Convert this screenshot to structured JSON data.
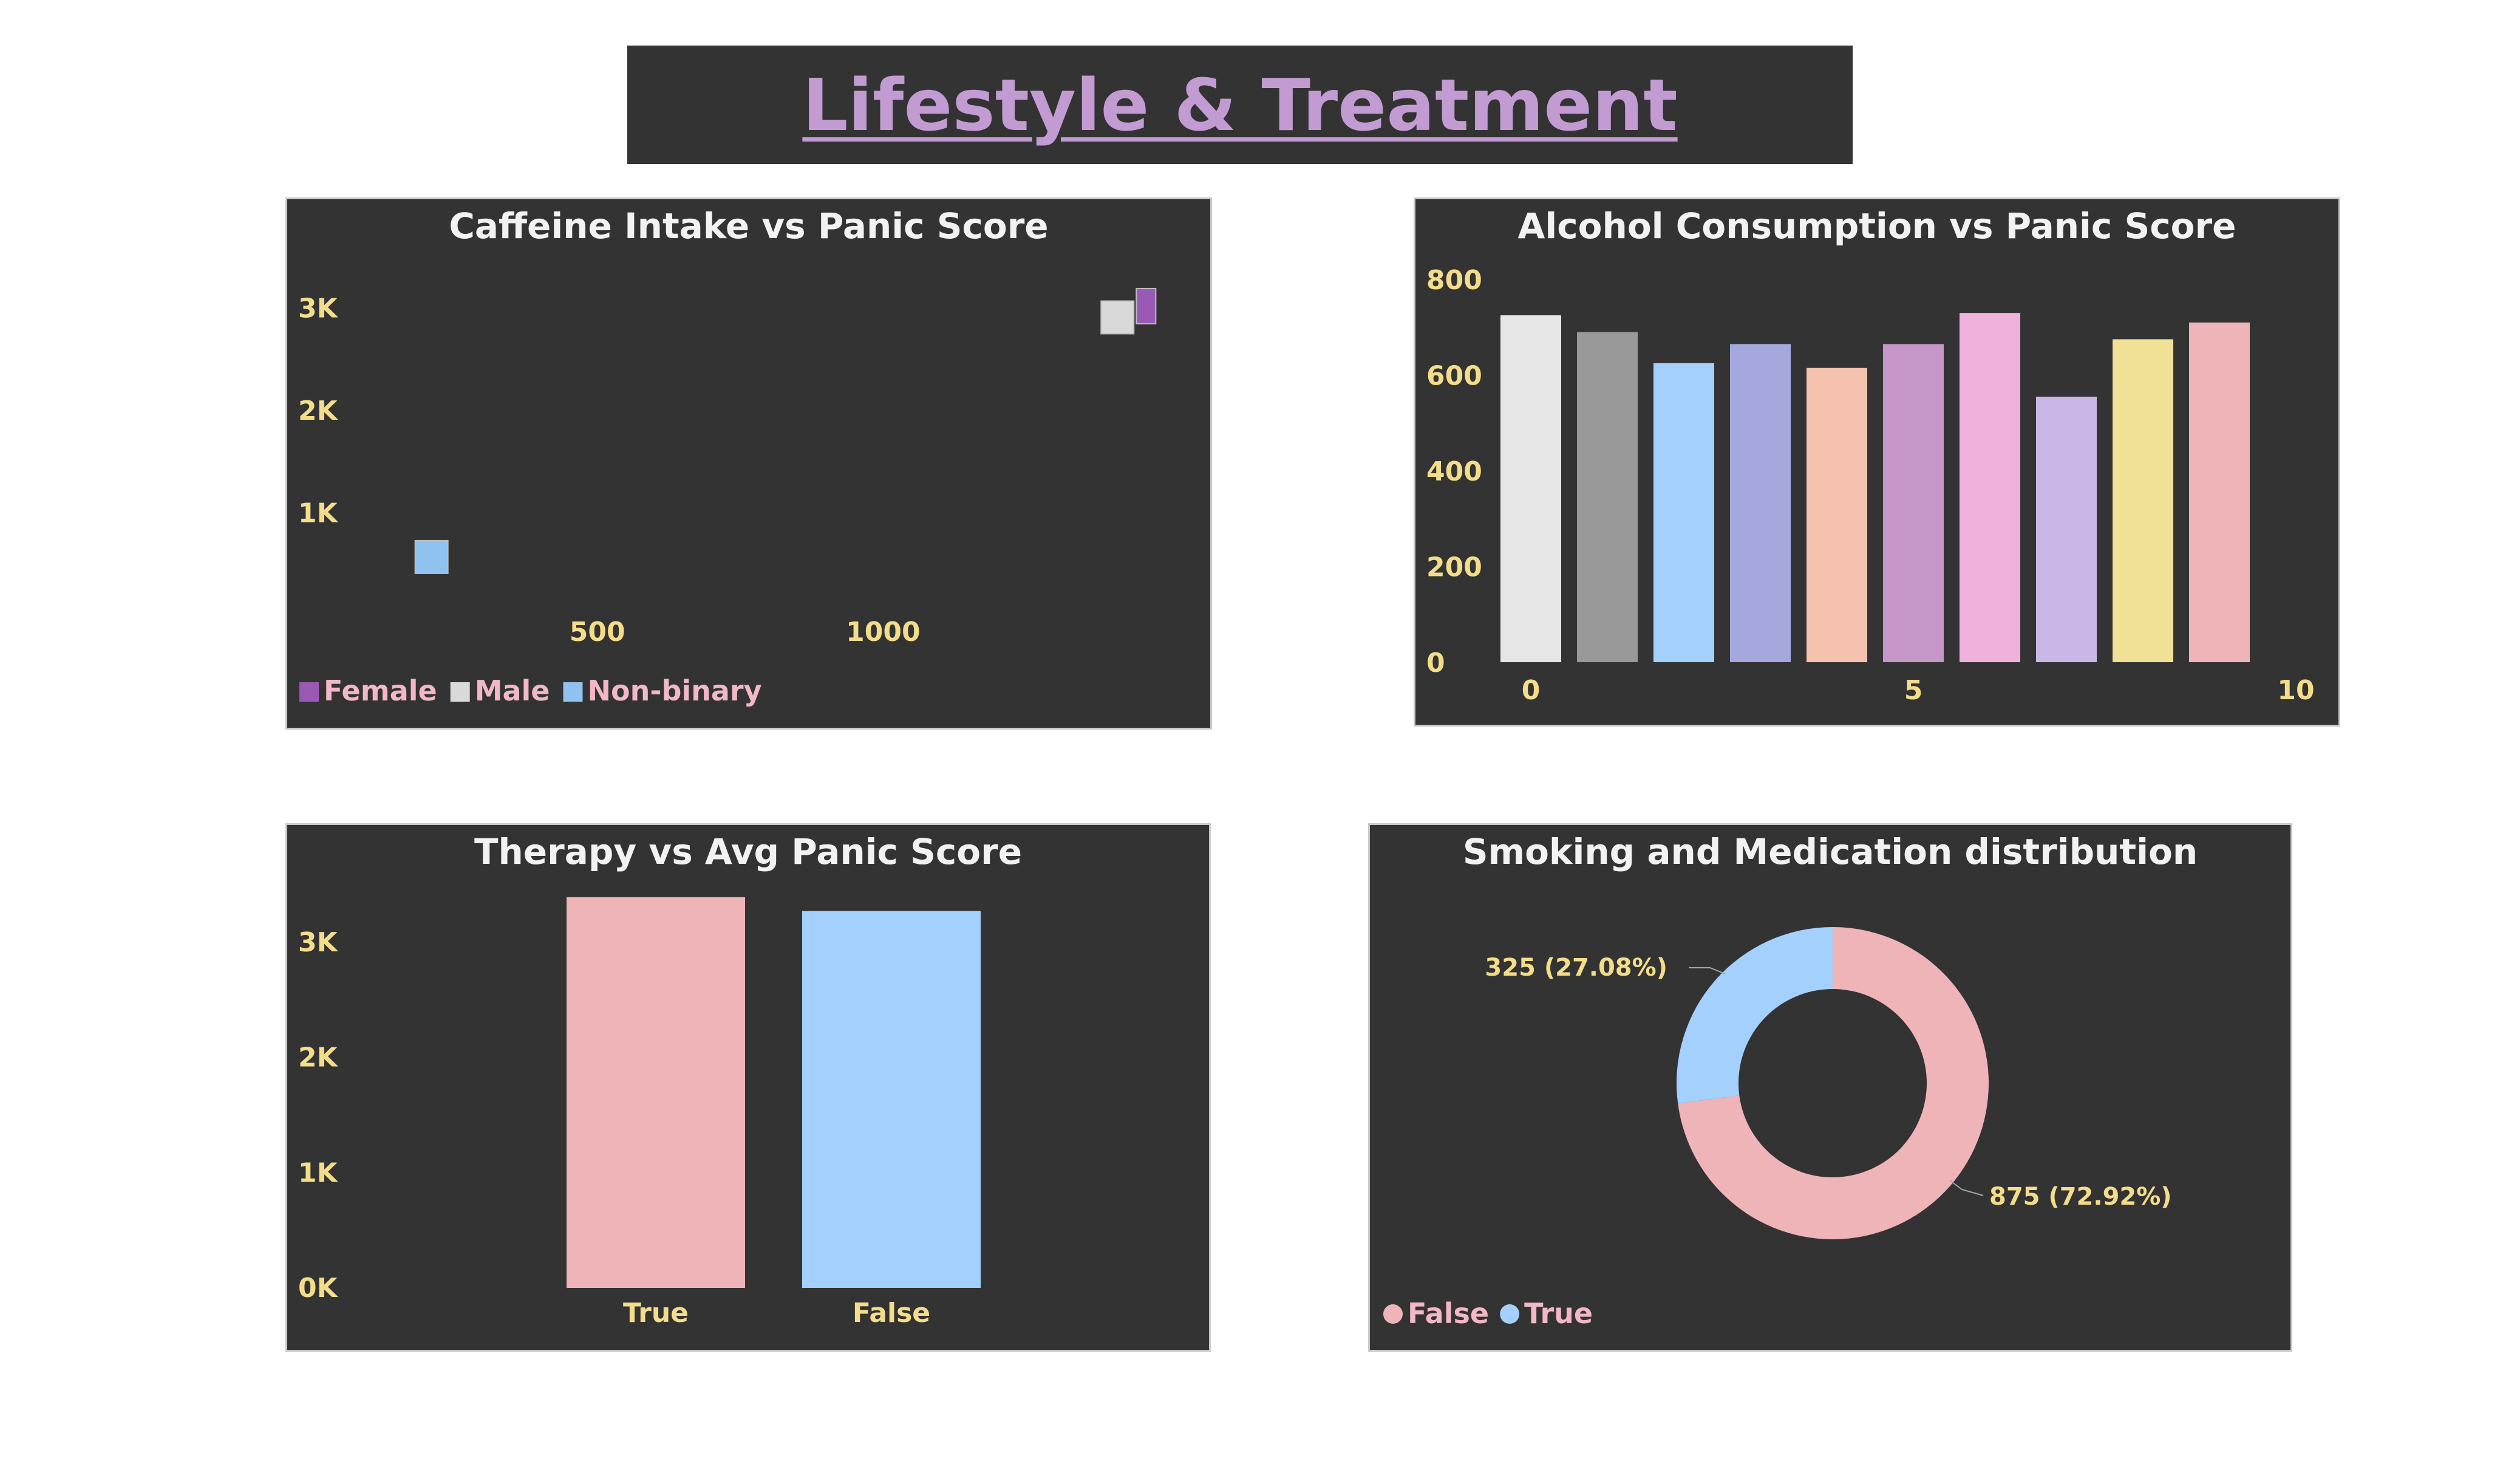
{
  "page": {
    "title": "Lifestyle & Treatment"
  },
  "colors": {
    "panel_bg": "#333333",
    "title": "#c39bd3",
    "tick": "#f4dd8a",
    "legend_text": "#f2b8c6",
    "female": "#9b59b6",
    "male": "#d9d9d9",
    "nonbinary": "#90c2f0"
  },
  "chart_data": [
    {
      "type": "scatter",
      "title": "Caffeine Intake vs Panic Score",
      "xticks": [
        "500",
        "1000"
      ],
      "yticks": [
        "1K",
        "2K",
        "3K"
      ],
      "xlim": [
        0,
        1500
      ],
      "ylim": [
        0,
        3500
      ],
      "legend_position": "bottom-left",
      "series": [
        {
          "name": "Female",
          "color": "#9b59b6",
          "x": [
            1460
          ],
          "y": [
            3020
          ]
        },
        {
          "name": "Male",
          "color": "#d9d9d9",
          "x": [
            1410
          ],
          "y": [
            2910
          ]
        },
        {
          "name": "Non-binary",
          "color": "#90c2f0",
          "x": [
            210
          ],
          "y": [
            570
          ]
        }
      ]
    },
    {
      "type": "bar",
      "title": "Alcohol Consumption vs Panic Score",
      "categories": [
        0,
        1,
        2,
        3,
        4,
        5,
        6,
        7,
        8,
        9
      ],
      "values": [
        725,
        690,
        625,
        665,
        615,
        665,
        730,
        555,
        675,
        710
      ],
      "colors": [
        "#e6e6e6",
        "#999999",
        "#a3d0fd",
        "#a4a8dc",
        "#f5c2b0",
        "#c596c8",
        "#f0b2dc",
        "#c9b7e8",
        "#f0e197",
        "#efb4b8"
      ],
      "xticks": [
        "0",
        "5",
        "10"
      ],
      "yticks": [
        "0",
        "200",
        "400",
        "600",
        "800"
      ],
      "ylim": [
        0,
        800
      ]
    },
    {
      "type": "bar",
      "title": "Therapy vs Avg Panic Score",
      "categories": [
        "True",
        "False"
      ],
      "values": [
        3390,
        3270
      ],
      "colors": [
        "#efb4b8",
        "#a3d0fd"
      ],
      "yticks": [
        "0K",
        "1K",
        "2K",
        "3K"
      ],
      "ylim": [
        0,
        3500
      ]
    },
    {
      "type": "pie",
      "donut": true,
      "title": "Smoking and Medication distribution",
      "slices": [
        {
          "name": "False",
          "value": 875,
          "label": "875 (72.92%)",
          "color": "#efb4b8"
        },
        {
          "name": "True",
          "value": 325,
          "label": "325 (27.08%)",
          "color": "#a3d0fd"
        }
      ],
      "legend_position": "bottom-left"
    }
  ]
}
